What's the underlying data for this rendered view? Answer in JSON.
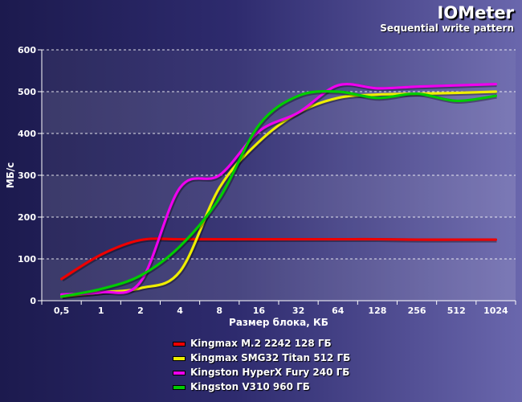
{
  "chart_data": {
    "type": "line",
    "title": "IOMeter",
    "subtitle": "Sequential write pattern",
    "xlabel": "Размер блока, КБ",
    "ylabel": "МБ/с",
    "ylim": [
      0,
      600
    ],
    "yticks": [
      "0",
      "100",
      "200",
      "300",
      "400",
      "500",
      "600"
    ],
    "categories": [
      "0,5",
      "1",
      "2",
      "4",
      "8",
      "16",
      "32",
      "64",
      "128",
      "256",
      "512",
      "1024"
    ],
    "grid": true,
    "legend_position": "bottom",
    "series": [
      {
        "name": "Kingmax M.2 2242 128 ГБ",
        "color": "#ee0000",
        "values": [
          52,
          110,
          145,
          147,
          147,
          147,
          147,
          147,
          147,
          146,
          146,
          146
        ]
      },
      {
        "name": "Kingmax SMG32 Titan 512 ГБ",
        "color": "#eeee00",
        "values": [
          10,
          20,
          30,
          70,
          270,
          380,
          450,
          485,
          493,
          495,
          497,
          500
        ]
      },
      {
        "name": "Kingston HyperX Fury 240 ГБ",
        "color": "#ee00ee",
        "values": [
          15,
          20,
          45,
          270,
          300,
          405,
          450,
          515,
          508,
          512,
          515,
          518
        ]
      },
      {
        "name": "Kingston V310 960 ГБ",
        "color": "#00cc00",
        "values": [
          10,
          28,
          60,
          130,
          245,
          420,
          490,
          500,
          485,
          495,
          478,
          490
        ]
      }
    ]
  }
}
